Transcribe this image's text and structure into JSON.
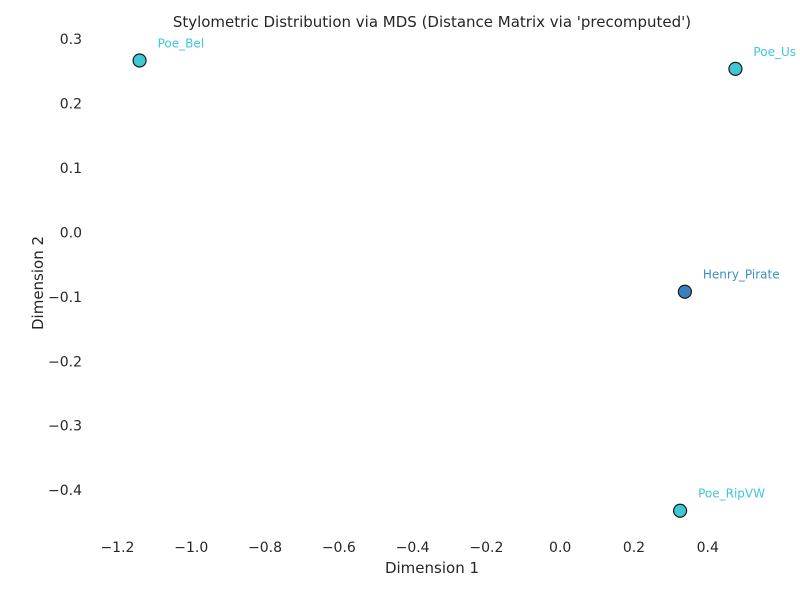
{
  "chart_data": {
    "type": "scatter",
    "title": "Stylometric Distribution via MDS (Distance Matrix via 'precomputed')",
    "xlabel": "Dimension 1",
    "ylabel": "Dimension 2",
    "xlim": [
      -1.25,
      0.65
    ],
    "ylim": [
      -0.465,
      0.305
    ],
    "xticks": [
      -1.2,
      -1.0,
      -0.8,
      -0.6,
      -0.4,
      -0.2,
      0.0,
      0.2,
      0.4
    ],
    "xtick_labels": [
      "−1.2",
      "−1.0",
      "−0.8",
      "−0.6",
      "−0.4",
      "−0.2",
      "0.0",
      "0.2",
      "0.4"
    ],
    "yticks": [
      0.3,
      0.2,
      0.1,
      0.0,
      -0.1,
      -0.2,
      -0.3,
      -0.4
    ],
    "ytick_labels": [
      "0.3",
      "0.2",
      "0.1",
      "0.0",
      "−0.1",
      "−0.2",
      "−0.3",
      "−0.4"
    ],
    "grid": false,
    "points": [
      {
        "label": "Poe_Bel",
        "x": -1.14,
        "y": 0.267,
        "color": "#3ec8d6",
        "label_color": "#3ec8d6"
      },
      {
        "label": "Poe_Us",
        "x": 0.475,
        "y": 0.254,
        "color": "#3ec8d6",
        "label_color": "#3ec8d6"
      },
      {
        "label": "Henry_Pirate",
        "x": 0.338,
        "y": -0.092,
        "color": "#3a7fbf",
        "label_color": "#3a8fc4"
      },
      {
        "label": "Poe_RipVW",
        "x": 0.325,
        "y": -0.432,
        "color": "#3ec8d6",
        "label_color": "#3ec8d6"
      }
    ]
  }
}
